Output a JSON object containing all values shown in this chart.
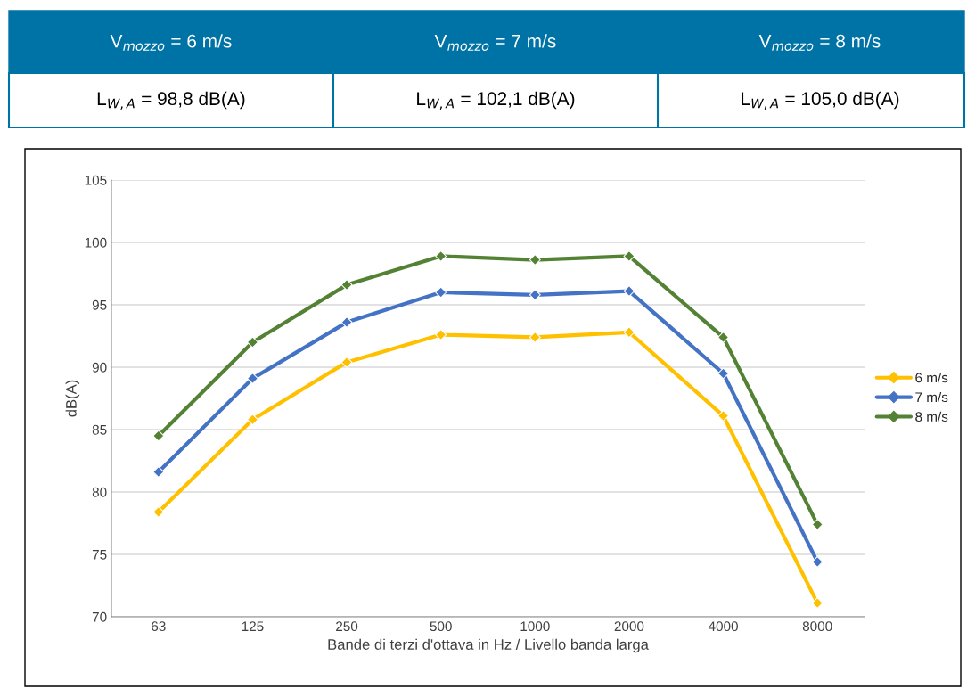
{
  "chart_data": {
    "type": "line",
    "xlabel": "Bande di terzi d'ottava in Hz / Livello banda larga",
    "ylabel": "dB(A)",
    "categories": [
      "63",
      "125",
      "250",
      "500",
      "1000",
      "2000",
      "4000",
      "8000"
    ],
    "series": [
      {
        "name": "6 m/s",
        "color": "#ffc000",
        "values": [
          78.4,
          85.8,
          90.4,
          92.6,
          92.4,
          92.8,
          86.1,
          71.1
        ]
      },
      {
        "name": "7 m/s",
        "color": "#4472c4",
        "values": [
          81.6,
          89.1,
          93.6,
          96.0,
          95.8,
          96.1,
          89.5,
          74.4
        ]
      },
      {
        "name": "8 m/s",
        "color": "#548235",
        "values": [
          84.5,
          92.0,
          96.6,
          98.9,
          98.6,
          98.9,
          92.4,
          77.4
        ]
      }
    ],
    "ylim": [
      70,
      105
    ],
    "yticks": [
      70,
      75,
      80,
      85,
      90,
      95,
      100,
      105
    ],
    "grid": "y",
    "legend": "right",
    "marker": "diamond",
    "line_style": "solid",
    "annotations": [
      "V$_{mozzo}$ = 6 m/s",
      "V$_{mozzo}$ = 7 m/s",
      "V$_{mozzo}$ = 8 m/s",
      "L$_{W,A}$ = 98,8 dB(A)",
      "L$_{W,A}$ = 102,1 dB(A)",
      "L$_{W,A}$ = 105,0 dB(A)"
    ]
  }
}
